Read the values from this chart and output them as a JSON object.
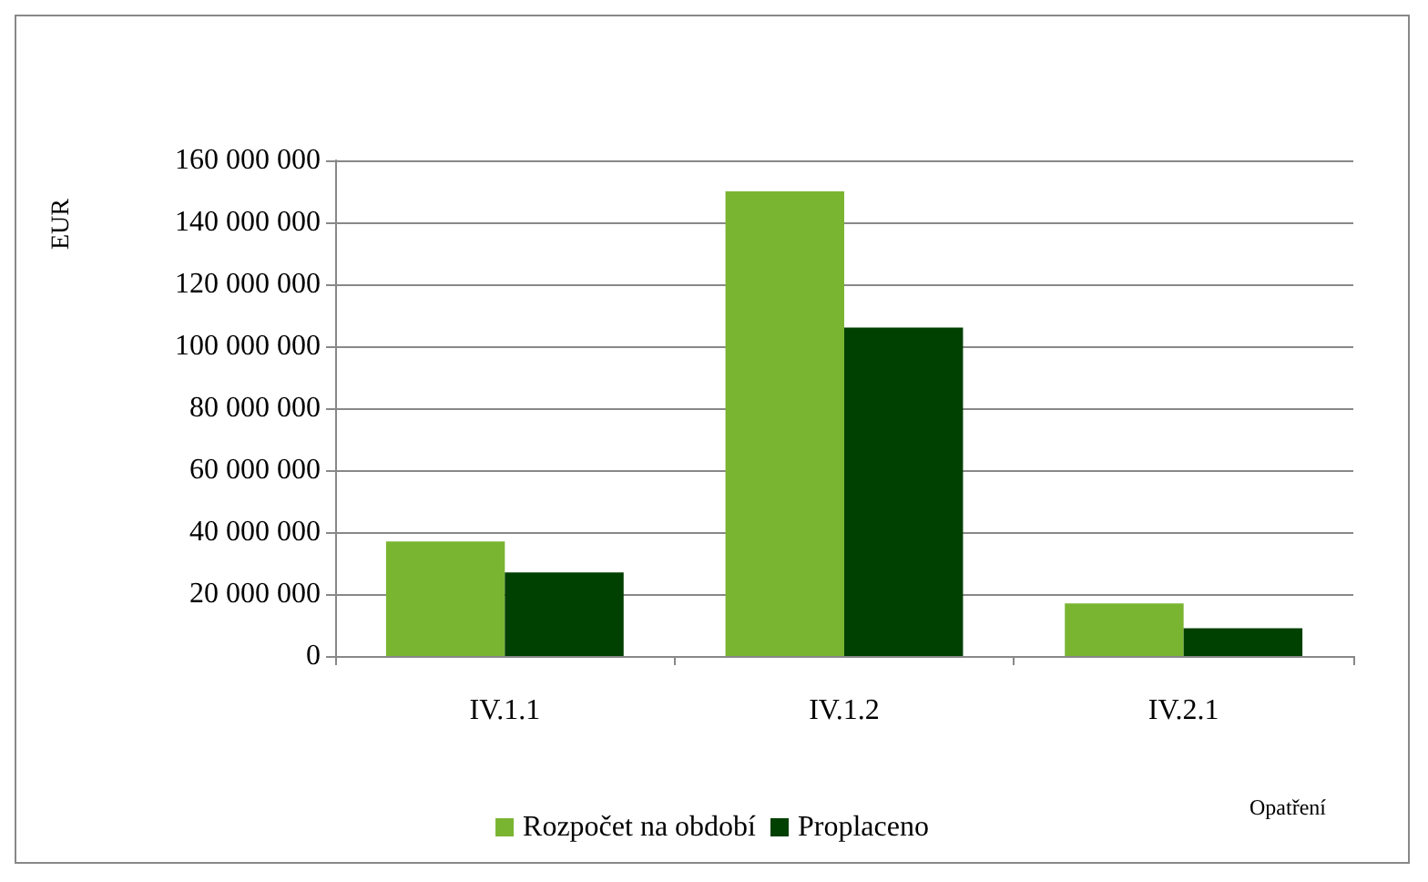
{
  "chart_data": {
    "type": "bar",
    "xlabel": "Opatření",
    "ylabel": "EUR",
    "categories": [
      "IV.1.1",
      "IV.1.2",
      "IV.2.1"
    ],
    "series": [
      {
        "name": "Rozpočet na období",
        "color": "#7ab532",
        "values": [
          37000000,
          150000000,
          17000000
        ]
      },
      {
        "name": "Proplaceno",
        "color": "#004000",
        "values": [
          27000000,
          106000000,
          9000000
        ]
      }
    ],
    "ylim": [
      0,
      160000000
    ],
    "yticks": [
      0,
      {
        "value": 20000000,
        "label": "20 000 000"
      },
      {
        "value": 40000000,
        "label": "40 000 000"
      },
      {
        "value": 60000000,
        "label": "60 000 000"
      },
      {
        "value": 80000000,
        "label": "80 000 000"
      },
      {
        "value": 100000000,
        "label": "100 000 000"
      },
      {
        "value": 120000000,
        "label": "120 000 000"
      },
      {
        "value": 140000000,
        "label": "140 000 000"
      },
      {
        "value": 160000000,
        "label": "160 000 000"
      }
    ],
    "grid": "y",
    "legend": "bottom"
  }
}
